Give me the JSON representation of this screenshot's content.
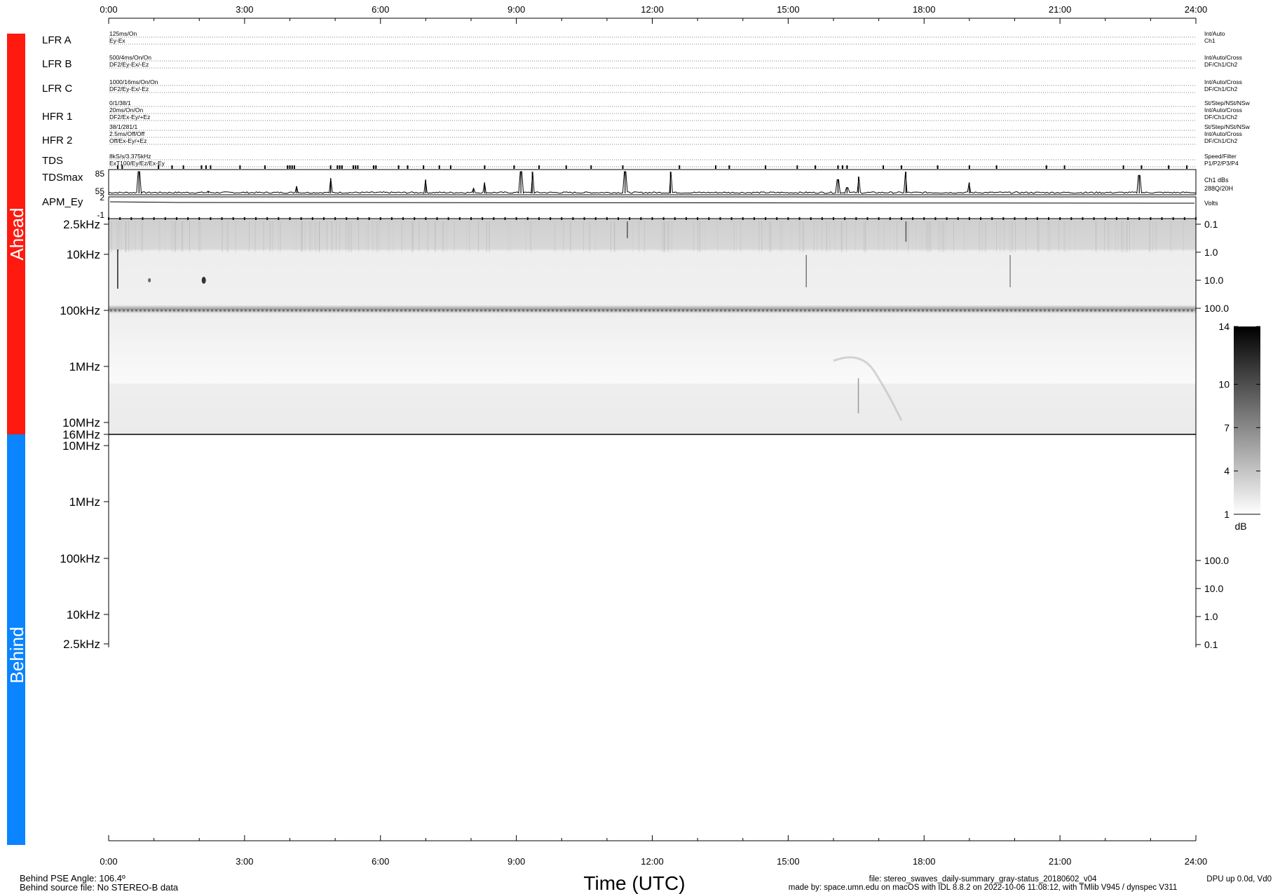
{
  "time_axis": {
    "ticks": [
      "0:00",
      "3:00",
      "6:00",
      "9:00",
      "12:00",
      "15:00",
      "18:00",
      "21:00",
      "24:00"
    ],
    "title": "Time (UTC)"
  },
  "side_labels": {
    "ahead": "Ahead",
    "behind": "Behind"
  },
  "colors": {
    "ahead": "#ff1a0f",
    "behind": "#0a84ff",
    "ink": "#000000"
  },
  "receivers": [
    {
      "name": "LFR A",
      "left": [
        "125ms/On",
        "Ey-Ex"
      ],
      "right": [
        "Int/Auto",
        "Ch1"
      ]
    },
    {
      "name": "LFR B",
      "left": [
        "500/4ms/On/On",
        "DF2/Ey-Ex/-Ez"
      ],
      "right": [
        "Int/Auto/Cross",
        "DF/Ch1/Ch2"
      ]
    },
    {
      "name": "LFR C",
      "left": [
        "1000/16ms/On/On",
        "DF2/Ey-Ex/-Ez"
      ],
      "right": [
        "Int/Auto/Cross",
        "DF/Ch1/Ch2"
      ]
    },
    {
      "name": "HFR 1",
      "left": [
        "0/1/38/1",
        "20ms/On/On",
        "DF2/Ex-Ey/+Ez"
      ],
      "right": [
        "St/Step/NSt/NSw",
        "Int/Auto/Cross",
        "DF/Ch1/Ch2"
      ]
    },
    {
      "name": "HFR 2",
      "left": [
        "38/1/281/1",
        "2.5ms/Off/Off",
        "Off/Ex-Ey/+Ez"
      ],
      "right": [
        "St/Step/NSt/NSw",
        "Int/Auto/Cross",
        "DF/Ch1/Ch2"
      ]
    },
    {
      "name": "TDS",
      "left": [
        "8kS/s/3.375kHz",
        "ExT100/Ey/Ez/Ex-Ey"
      ],
      "right": [
        "Speed/Filter",
        "P1/P2/P3/P4"
      ]
    }
  ],
  "tdsmax": {
    "label": "TDSmax",
    "ticks": [
      "85",
      "55"
    ],
    "right": [
      "Ch1 dBs",
      "288Q/20H"
    ]
  },
  "apm": {
    "label": "APM_Ey",
    "ticks": [
      "2",
      "-1"
    ],
    "right": [
      "Volts"
    ]
  },
  "ahead_freq_labels": [
    "2.5kHz",
    "10kHz",
    "100kHz",
    "1MHz",
    "10MHz",
    "16MHz"
  ],
  "ahead_right_labels": [
    "0.1",
    "1.0",
    "10.0",
    "100.0"
  ],
  "behind_freq_labels": [
    "10MHz",
    "1MHz",
    "100kHz",
    "10kHz",
    "2.5kHz"
  ],
  "behind_right_labels": [
    "100.0",
    "10.0",
    "1.0",
    "0.1"
  ],
  "colorbar": {
    "ticks": [
      "14",
      "10",
      "7",
      "4",
      "1"
    ],
    "unit": "dB"
  },
  "footer": {
    "left": [
      "Behind PSE Angle:  106.4º",
      "Behind source file: No STEREO-B data"
    ],
    "file": "file: stereo_swaves_daily-summary_gray-status_20180602_v04",
    "made": "made by: space.umn.edu on macOS with IDL 8.8.2 on 2022-10-06 11:08:12, with TMlib V945 / dynspec V311",
    "dpu": "DPU up 0.0d, Vd0"
  },
  "chart_data": {
    "type": "heatmap",
    "title": "",
    "xlabel": "Time (UTC)",
    "xlim": [
      0,
      24
    ],
    "tdsmax_events": [
      {
        "t": 0.67,
        "dB": 85
      },
      {
        "t": 2.2,
        "dB": 58
      },
      {
        "t": 4.15,
        "dB": 65
      },
      {
        "t": 4.9,
        "dB": 76
      },
      {
        "t": 7.0,
        "dB": 74
      },
      {
        "t": 8.05,
        "dB": 62
      },
      {
        "t": 8.3,
        "dB": 70
      },
      {
        "t": 9.1,
        "dB": 85
      },
      {
        "t": 9.35,
        "dB": 85
      },
      {
        "t": 11.4,
        "dB": 85
      },
      {
        "t": 12.4,
        "dB": 85
      },
      {
        "t": 16.1,
        "dB": 74
      },
      {
        "t": 16.3,
        "dB": 63
      },
      {
        "t": 16.55,
        "dB": 78
      },
      {
        "t": 17.6,
        "dB": 85
      },
      {
        "t": 19.0,
        "dB": 70
      },
      {
        "t": 22.75,
        "dB": 80
      }
    ],
    "tdsmax_ylim": [
      55,
      85
    ],
    "apm_ylim": [
      -1,
      2
    ],
    "colorbar_range_dB": [
      1,
      14
    ],
    "behind": "No STEREO-B data"
  }
}
